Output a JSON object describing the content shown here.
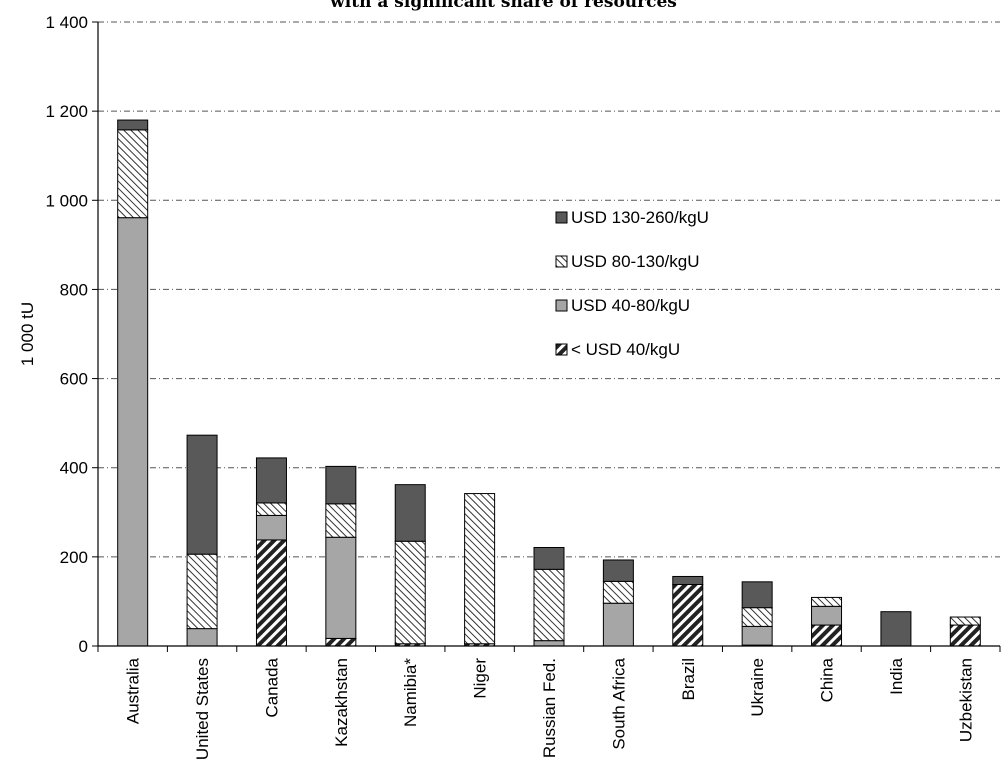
{
  "chart_data": {
    "type": "bar",
    "stacked": true,
    "title": "with a significant share of resources",
    "ylabel": "1 000 tU",
    "xlabel": "",
    "ylim": [
      0,
      1400
    ],
    "yticks": [
      0,
      200,
      400,
      600,
      800,
      1000,
      1200,
      1400
    ],
    "ytick_labels": [
      "0",
      "200",
      "400",
      "600",
      "800",
      "1 000",
      "1 200",
      "1 400"
    ],
    "grid": "horizontal dash-dot",
    "legend_position": "upper-center",
    "categories": [
      "Australia",
      "United States",
      "Canada",
      "Kazakhstan",
      "Namibia*",
      "Niger",
      "Russian Fed.",
      "South Africa",
      "Brazil",
      "Ukraine",
      "China",
      "India",
      "Uzbekistan"
    ],
    "series": [
      {
        "name": "< USD 40/kgU",
        "pattern": "dense-diagonal-dark",
        "color": "#333333",
        "values": [
          0,
          0,
          238,
          17,
          5,
          5,
          0,
          0,
          138,
          2,
          47,
          0,
          47
        ]
      },
      {
        "name": "USD 40-80/kgU",
        "pattern": "solid",
        "color": "#a6a6a6",
        "values": [
          961,
          39,
          55,
          227,
          0,
          0,
          12,
          96,
          0,
          42,
          42,
          0,
          0
        ]
      },
      {
        "name": "USD 80-130/kgU",
        "pattern": "light-diagonal",
        "color": "#ffffff",
        "values": [
          197,
          167,
          28,
          75,
          230,
          337,
          160,
          49,
          0,
          42,
          20,
          0,
          18
        ]
      },
      {
        "name": "USD 130-260/kgU",
        "pattern": "solid",
        "color": "#595959",
        "values": [
          22,
          267,
          101,
          84,
          127,
          0,
          49,
          48,
          18,
          58,
          0,
          77,
          0
        ]
      }
    ],
    "legend_order": [
      "USD 130-260/kgU",
      "USD 80-130/kgU",
      "USD 40-80/kgU",
      "< USD 40/kgU"
    ]
  }
}
